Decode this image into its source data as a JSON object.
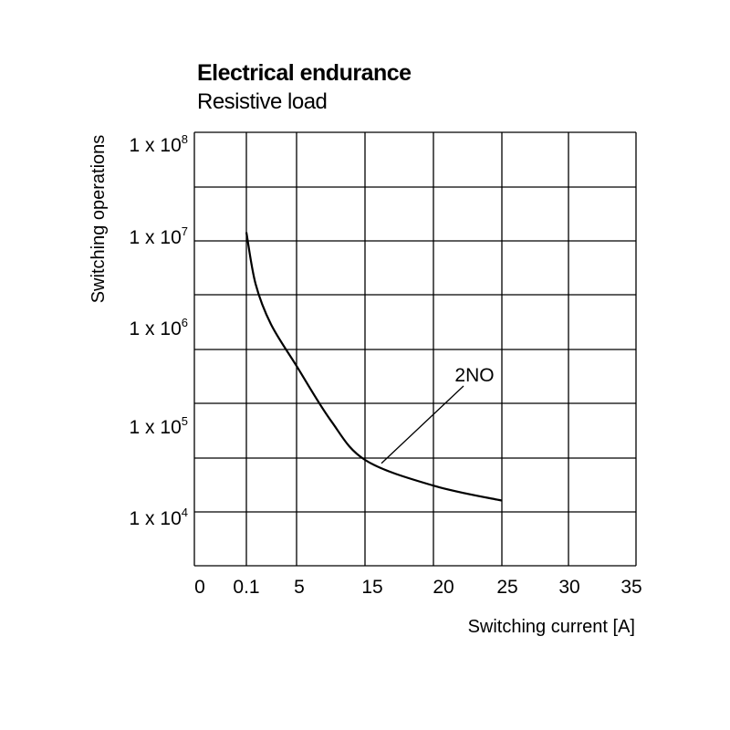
{
  "chart_data": {
    "type": "line",
    "title": "Electrical endurance",
    "subtitle": "Resistive load",
    "xlabel": "Switching current [A]",
    "ylabel": "Switching operations",
    "x_tick_labels": [
      "0",
      "0.1",
      "5",
      "15",
      "20",
      "25",
      "30",
      "35"
    ],
    "y_tick_labels": [
      {
        "base": "1 x 10",
        "exp": "8"
      },
      {
        "base": "1 x 10",
        "exp": "7"
      },
      {
        "base": "1 x 10",
        "exp": "6"
      },
      {
        "base": "1 x 10",
        "exp": "5"
      },
      {
        "base": "1 x 10",
        "exp": "4"
      }
    ],
    "y_scale": "log",
    "grid": true,
    "series": [
      {
        "name": "2NO",
        "points": [
          {
            "x": 0.1,
            "y": 12000000
          },
          {
            "x": 1,
            "y": 4000000
          },
          {
            "x": 2.5,
            "y": 1700000
          },
          {
            "x": 5,
            "y": 700000
          },
          {
            "x": 10,
            "y": 220000
          },
          {
            "x": 15,
            "y": 95000
          },
          {
            "x": 20,
            "y": 55000
          },
          {
            "x": 25,
            "y": 40000
          }
        ]
      }
    ],
    "color": "#000000"
  }
}
